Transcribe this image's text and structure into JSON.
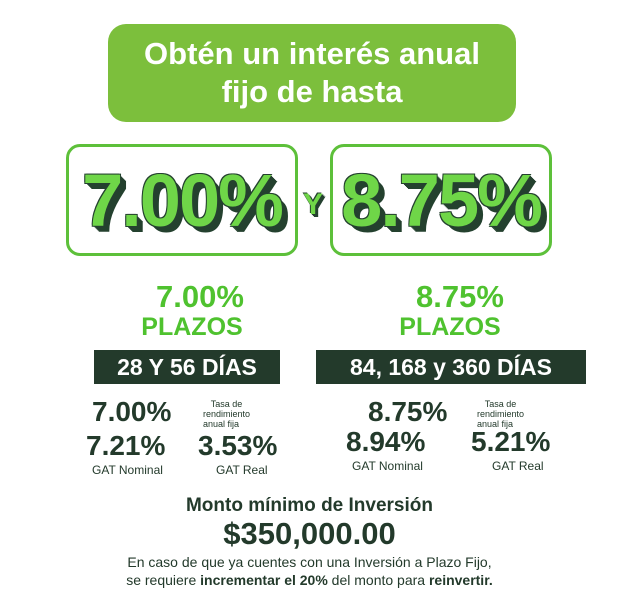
{
  "banner": {
    "line1": "Obtén un interés anual",
    "line2": "fijo de hasta"
  },
  "rates": {
    "left": "7.00%",
    "separator": "Y",
    "right": "8.75%"
  },
  "left": {
    "rate": "7.00%",
    "plazos": "PLAZOS",
    "days": "28 Y 56 DÍAS",
    "fixed_rate": "7.00%",
    "fixed_label_1": "Tasa de",
    "fixed_label_2": "rendimiento",
    "fixed_label_3": "anual fija",
    "gat_nominal": "7.21%",
    "gat_nominal_label": "GAT Nominal",
    "gat_real": "3.53%",
    "gat_real_label": "GAT Real"
  },
  "right": {
    "rate": "8.75%",
    "plazos": "PLAZOS",
    "days": "84, 168 y 360 DÍAS",
    "fixed_rate": "8.75%",
    "fixed_label_1": "Tasa de",
    "fixed_label_2": "rendimiento",
    "fixed_label_3": "anual fija",
    "gat_nominal": "8.94%",
    "gat_nominal_label": "GAT Nominal",
    "gat_real": "5.21%",
    "gat_real_label": "GAT Real"
  },
  "minimum": {
    "title": "Monto mínimo de Inversión",
    "amount": "$350,000.00"
  },
  "note": {
    "line1": "En caso de que ya cuentes con una Inversión a Plazo Fijo,",
    "line2_a": "se requiere ",
    "line2_b": "incrementar el 20%",
    "line2_c": " del monto para ",
    "line2_d": "reinvertir."
  },
  "colors": {
    "green": "#7cbf3c",
    "bright_green": "#4fc22f",
    "dark": "#233a2b"
  }
}
